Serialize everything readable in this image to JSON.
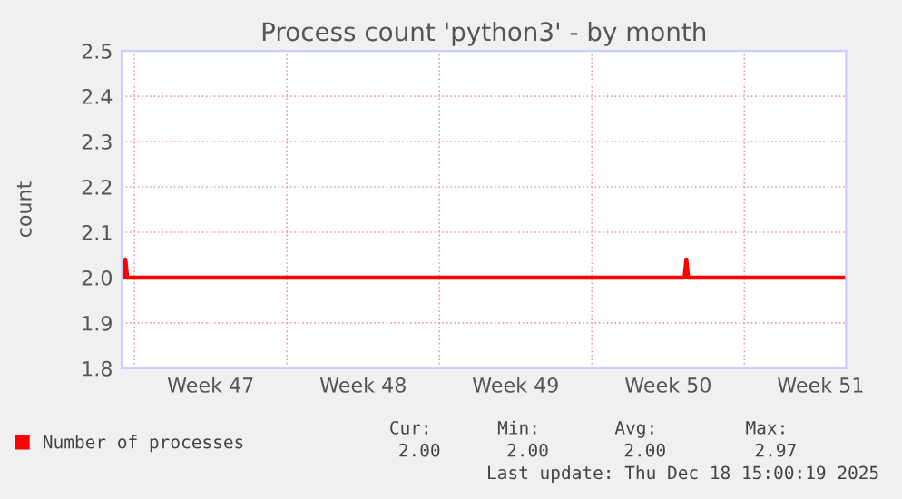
{
  "chart_data": {
    "type": "line",
    "title": "Process count 'python3' - by month",
    "ylabel": "count",
    "x": [
      "2025-11-16T10:00",
      "2025-11-16T12:00",
      "2025-11-16T14:00",
      "2025-11-16T16:00",
      "2025-12-12T06:00",
      "2025-12-12T08:00",
      "2025-12-12T10:00",
      "2025-12-19T14:00"
    ],
    "series": [
      {
        "name": "Number of processes",
        "color": "#ff0000",
        "values": [
          2.0,
          2.0,
          2.04,
          2.0,
          2.0,
          2.04,
          2.0,
          2.0
        ]
      }
    ],
    "xlim": [
      "2025-11-16T10:00",
      "2025-12-19T16:00"
    ],
    "ylim": [
      1.8,
      2.5
    ],
    "xticks": [
      {
        "value": "2025-11-20T12:00",
        "label": "Week 47"
      },
      {
        "value": "2025-11-27T12:00",
        "label": "Week 48"
      },
      {
        "value": "2025-12-04T12:00",
        "label": "Week 49"
      },
      {
        "value": "2025-12-11T12:00",
        "label": "Week 50"
      },
      {
        "value": "2025-12-18T12:00",
        "label": "Week 51"
      },
      {
        "value": "2025-11-17",
        "label": null
      },
      {
        "value": "2025-11-24",
        "label": null
      },
      {
        "value": "2025-12-01",
        "label": null
      },
      {
        "value": "2025-12-08",
        "label": null
      },
      {
        "value": "2025-12-15",
        "label": null
      }
    ],
    "yticks": [
      {
        "value": 1.8,
        "label": "1.8"
      },
      {
        "value": 1.9,
        "label": "1.9"
      },
      {
        "value": 2.0,
        "label": "2.0"
      },
      {
        "value": 2.1,
        "label": "2.1"
      },
      {
        "value": 2.2,
        "label": "2.2"
      },
      {
        "value": 2.3,
        "label": "2.3"
      },
      {
        "value": 2.4,
        "label": "2.4"
      },
      {
        "value": 2.5,
        "label": "2.5"
      }
    ],
    "grid": true,
    "legend": "bottom",
    "marker": "none",
    "line_style": "solid",
    "annotations": [
      "Cur:",
      "Min:",
      "Avg:",
      "Max:",
      "2.00",
      "2.00",
      "2.00",
      "2.97",
      "Last update: Thu Dec 18 15:00:19 2025"
    ]
  }
}
